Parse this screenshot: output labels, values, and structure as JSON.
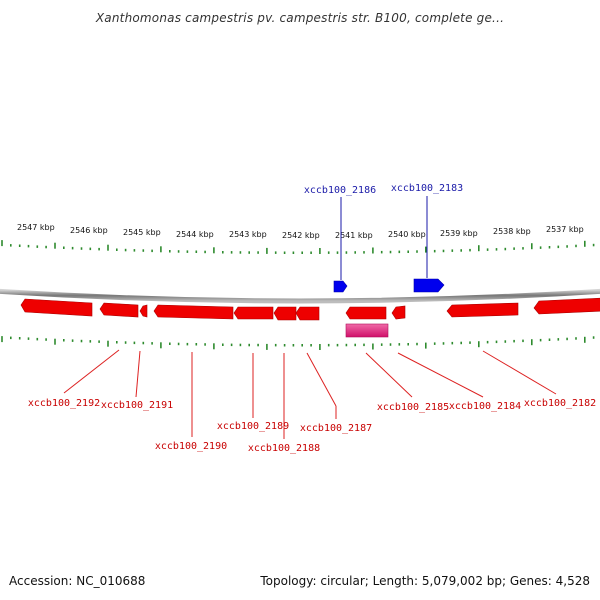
{
  "title": "Xanthomonas campestris pv. campestris str. B100, complete ge...",
  "footer": {
    "accession": "Accession: NC_010688",
    "topology": "Topology: circular; Length: 5,079,002 bp; Genes: 4,528"
  },
  "colors": {
    "backbone": "#8c8c8c",
    "tick": "#2e8b2e",
    "forward_gene": "#0000ee",
    "reverse_gene": "#ee0000",
    "rna_feature": "#e6197a",
    "forward_label": "#1a1aa8",
    "reverse_label": "#c80000"
  },
  "scale": {
    "unit": "kbp",
    "labels": [
      "2547 kbp",
      "2546 kbp",
      "2545 kbp",
      "2544 kbp",
      "2543 kbp",
      "2542 kbp",
      "2541 kbp",
      "2540 kbp",
      "2539 kbp",
      "2538 kbp",
      "2537 kbp"
    ]
  },
  "forward_labels": [
    "xccb100_2186",
    "xccb100_2183"
  ],
  "reverse_labels": [
    "xccb100_2192",
    "xccb100_2191",
    "xccb100_2190",
    "xccb100_2189",
    "xccb100_2188",
    "xccb100_2187",
    "xccb100_2185",
    "xccb100_2184",
    "xccb100_2182"
  ]
}
